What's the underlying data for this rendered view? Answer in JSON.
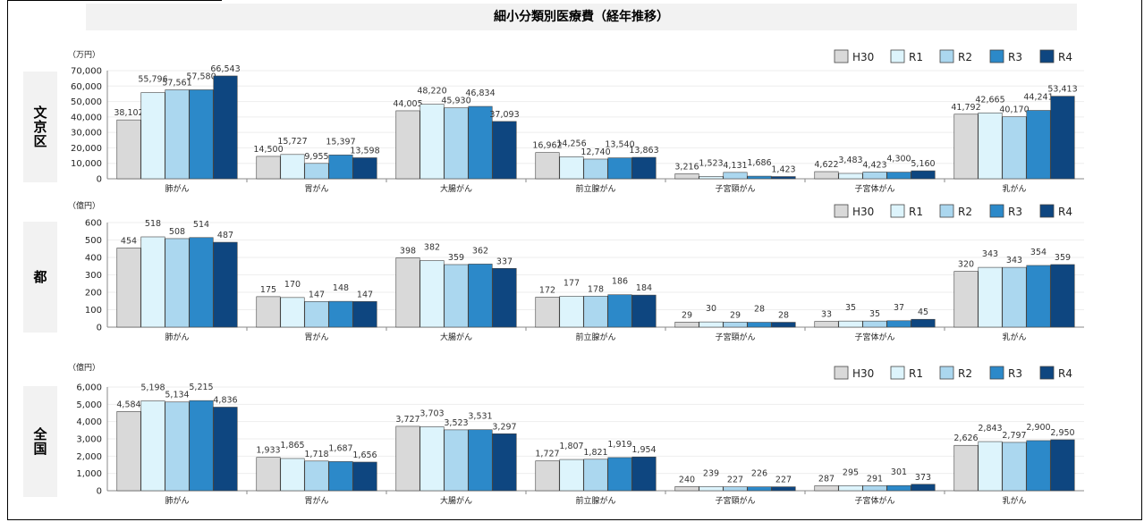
{
  "title": "細小分類別医療費（経年推移）",
  "legend_labels": [
    "H30",
    "R1",
    "R2",
    "R3",
    "R4"
  ],
  "series_colors": [
    "#d9d9d9",
    "#ddf4fc",
    "#abd7ef",
    "#2c89c9",
    "#0e4680"
  ],
  "regions": [
    "文京区",
    "都",
    "全国"
  ],
  "chart_data": [
    {
      "type": "bar",
      "region": "文京区",
      "unit": "（万円）",
      "categories": [
        "肺がん",
        "胃がん",
        "大腸がん",
        "前立腺がん",
        "子宮頸がん",
        "子宮体がん",
        "乳がん"
      ],
      "ylim": [
        0,
        70000
      ],
      "yticks": [
        0,
        10000,
        20000,
        30000,
        40000,
        50000,
        60000,
        70000
      ],
      "ytick_labels": [
        "0",
        "10,000",
        "20,000",
        "30,000",
        "40,000",
        "50,000",
        "60,000",
        "70,000"
      ],
      "series": [
        {
          "name": "H30",
          "values": [
            38102,
            14500,
            44005,
            16962,
            3216,
            4622,
            41792
          ],
          "labels": [
            "38,102",
            "14,500",
            "44,005",
            "16,962",
            "3,216",
            "4,622",
            "41,792"
          ]
        },
        {
          "name": "R1",
          "values": [
            55796,
            15727,
            48220,
            14256,
            1523,
            3483,
            42665
          ],
          "labels": [
            "55,796",
            "15,727",
            "48,220",
            "14,256",
            "1,523",
            "3,483",
            "42,665"
          ]
        },
        {
          "name": "R2",
          "values": [
            57561,
            9955,
            45930,
            12740,
            4131,
            4423,
            40170
          ],
          "labels": [
            "57,561",
            "9,955",
            "45,930",
            "12,740",
            "4,131",
            "4,423",
            "40,170"
          ]
        },
        {
          "name": "R3",
          "values": [
            57580,
            15397,
            46834,
            13540,
            1686,
            4300,
            44241
          ],
          "labels": [
            "57,580",
            "15,397",
            "46,834",
            "13,540",
            "1,686",
            "4,300",
            "44,241"
          ]
        },
        {
          "name": "R4",
          "values": [
            66543,
            13598,
            37093,
            13863,
            1423,
            5160,
            53413
          ],
          "labels": [
            "66,543",
            "13,598",
            "37,093",
            "13,863",
            "1,423",
            "5,160",
            "53,413"
          ]
        }
      ]
    },
    {
      "type": "bar",
      "region": "都",
      "unit": "（億円）",
      "categories": [
        "肺がん",
        "胃がん",
        "大腸がん",
        "前立腺がん",
        "子宮頸がん",
        "子宮体がん",
        "乳がん"
      ],
      "ylim": [
        0,
        600
      ],
      "yticks": [
        0,
        100,
        200,
        300,
        400,
        500,
        600
      ],
      "ytick_labels": [
        "0",
        "100",
        "200",
        "300",
        "400",
        "500",
        "600"
      ],
      "series": [
        {
          "name": "H30",
          "values": [
            454,
            175,
            398,
            172,
            29,
            33,
            320
          ],
          "labels": [
            "454",
            "175",
            "398",
            "172",
            "29",
            "33",
            "320"
          ]
        },
        {
          "name": "R1",
          "values": [
            518,
            170,
            382,
            177,
            30,
            35,
            343
          ],
          "labels": [
            "518",
            "170",
            "382",
            "177",
            "30",
            "35",
            "343"
          ]
        },
        {
          "name": "R2",
          "values": [
            508,
            147,
            359,
            178,
            29,
            35,
            343
          ],
          "labels": [
            "508",
            "147",
            "359",
            "178",
            "29",
            "35",
            "343"
          ]
        },
        {
          "name": "R3",
          "values": [
            514,
            148,
            362,
            186,
            28,
            37,
            354
          ],
          "labels": [
            "514",
            "148",
            "362",
            "186",
            "28",
            "37",
            "354"
          ]
        },
        {
          "name": "R4",
          "values": [
            487,
            147,
            337,
            184,
            28,
            45,
            359
          ],
          "labels": [
            "487",
            "147",
            "337",
            "184",
            "28",
            "45",
            "359"
          ]
        }
      ]
    },
    {
      "type": "bar",
      "region": "全国",
      "unit": "（億円）",
      "categories": [
        "肺がん",
        "胃がん",
        "大腸がん",
        "前立腺がん",
        "子宮頸がん",
        "子宮体がん",
        "乳がん"
      ],
      "ylim": [
        0,
        6000
      ],
      "yticks": [
        0,
        1000,
        2000,
        3000,
        4000,
        5000,
        6000
      ],
      "ytick_labels": [
        "0",
        "1,000",
        "2,000",
        "3,000",
        "4,000",
        "5,000",
        "6,000"
      ],
      "series": [
        {
          "name": "H30",
          "values": [
            4584,
            1933,
            3727,
            1727,
            240,
            287,
            2626
          ],
          "labels": [
            "4,584",
            "1,933",
            "3,727",
            "1,727",
            "240",
            "287",
            "2,626"
          ]
        },
        {
          "name": "R1",
          "values": [
            5198,
            1865,
            3703,
            1807,
            239,
            295,
            2843
          ],
          "labels": [
            "5,198",
            "1,865",
            "3,703",
            "1,807",
            "239",
            "295",
            "2,843"
          ]
        },
        {
          "name": "R2",
          "values": [
            5134,
            1718,
            3523,
            1821,
            227,
            291,
            2797
          ],
          "labels": [
            "5,134",
            "1,718",
            "3,523",
            "1,821",
            "227",
            "291",
            "2,797"
          ]
        },
        {
          "name": "R3",
          "values": [
            5215,
            1687,
            3531,
            1919,
            226,
            301,
            2900
          ],
          "labels": [
            "5,215",
            "1,687",
            "3,531",
            "1,919",
            "226",
            "301",
            "2,900"
          ]
        },
        {
          "name": "R4",
          "values": [
            4836,
            1656,
            3297,
            1954,
            227,
            373,
            2950
          ],
          "labels": [
            "4,836",
            "1,656",
            "3,297",
            "1,954",
            "227",
            "373",
            "2,950"
          ]
        }
      ]
    }
  ]
}
